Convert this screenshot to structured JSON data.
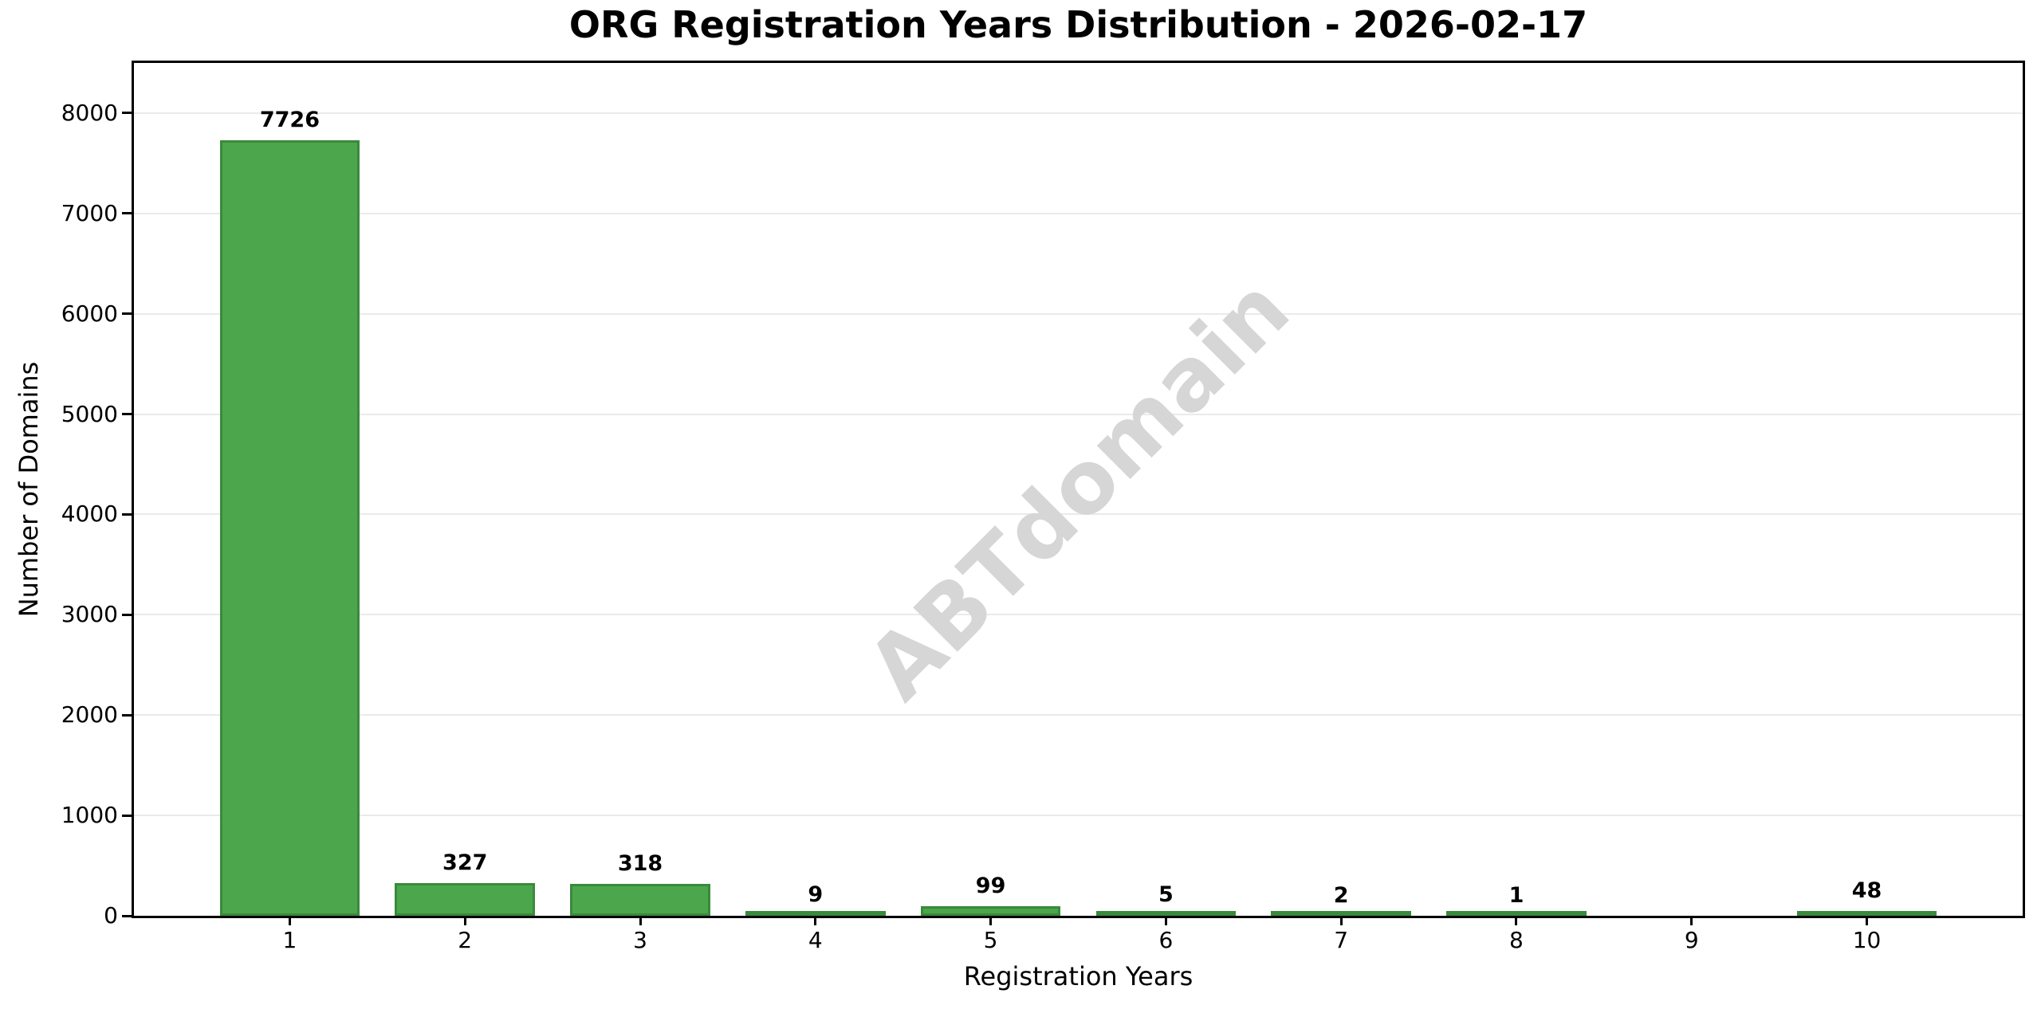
{
  "title": "ORG Registration Years Distribution - 2026-02-17",
  "watermark": {
    "text": "ABTdomain",
    "color": "#d6d6d6"
  },
  "chart_data": {
    "type": "bar",
    "title": "ORG Registration Years Distribution - 2026-02-17",
    "categories": [
      "1",
      "2",
      "3",
      "4",
      "5",
      "6",
      "7",
      "8",
      "9",
      "10"
    ],
    "values": [
      7726,
      327,
      318,
      9,
      99,
      5,
      2,
      1,
      0,
      48
    ],
    "bar_labels": [
      "7726",
      "327",
      "318",
      "9",
      "99",
      "5",
      "2",
      "1",
      "",
      "48"
    ],
    "xlabel": "Registration Years",
    "ylabel": "Number of Domains",
    "yticks": [
      0,
      1000,
      2000,
      3000,
      4000,
      5000,
      6000,
      7000,
      8000
    ],
    "ylim": [
      0,
      8500
    ],
    "grid": "horizontal-only",
    "legend": "none",
    "bar_color": "#4ca64c",
    "bar_edge_color": "#3a8a3c"
  }
}
